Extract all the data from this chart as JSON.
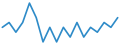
{
  "values": [
    4,
    5,
    3,
    5,
    9,
    6,
    1,
    4,
    1,
    4,
    2,
    5,
    2,
    4,
    3,
    5,
    4,
    6
  ],
  "line_color": "#2e8bc8",
  "linewidth": 1.2,
  "background_color": "#ffffff"
}
